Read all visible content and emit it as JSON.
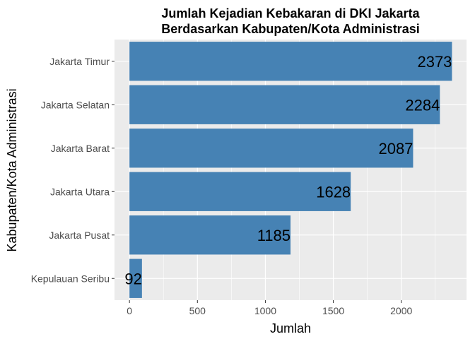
{
  "chart_data": {
    "type": "bar",
    "orientation": "horizontal",
    "title": "Jumlah Kejadian Kebakaran di DKI Jakarta",
    "subtitle": "Berdasarkan Kabupaten/Kota Administrasi",
    "xlabel": "Jumlah",
    "ylabel": "Kabupaten/Kota Administrasi",
    "categories": [
      "Jakarta Timur",
      "Jakarta Selatan",
      "Jakarta Barat",
      "Jakarta Utara",
      "Jakarta Pusat",
      "Kepulauan Seribu"
    ],
    "values": [
      2373,
      2284,
      2087,
      1628,
      1185,
      92
    ],
    "xlim": [
      -110,
      2480
    ],
    "x_ticks": [
      0,
      500,
      1000,
      1500,
      2000
    ],
    "x_tick_labels": [
      "0",
      "500",
      "1000",
      "1500",
      "2000"
    ],
    "grid": true,
    "legend": "none",
    "bar_color": "#4682B4",
    "panel_color": "#EBEBEB",
    "grid_color": "#FFFFFF"
  }
}
